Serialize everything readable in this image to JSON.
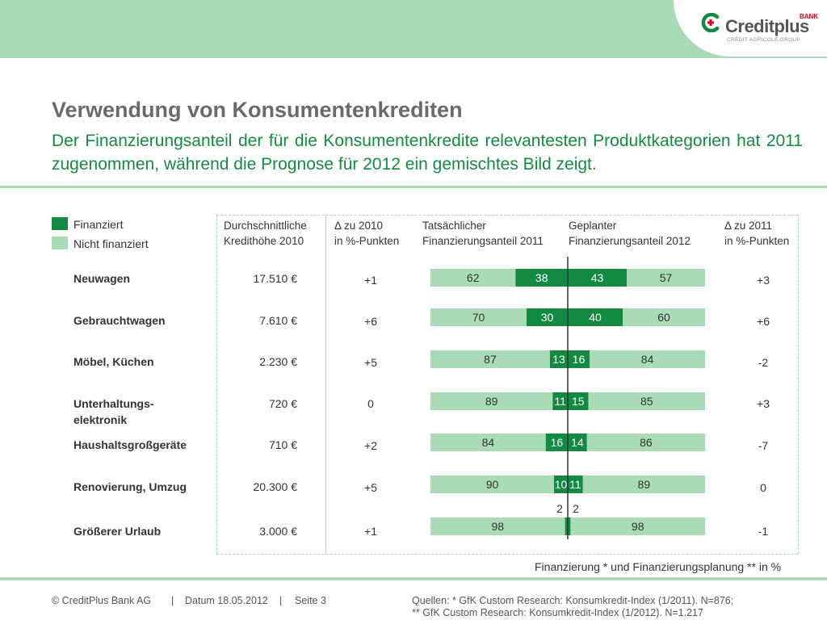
{
  "brand": {
    "name": "Creditplus",
    "bank": "BANK",
    "group": "CRÉDIT AGRICOLE GROUP"
  },
  "title": "Verwendung von Konsumentenkrediten",
  "subtitle": "Der Finanzierungsanteil der für die Konsumentenkredite relevantesten Produktkategorien hat 2011 zugenommen, während die Prognose für 2012 ein gemischtes Bild zeigt.",
  "colors": {
    "financed": "#138a42",
    "not_financed": "#a8dbb6",
    "accent": "#a8dbb6",
    "title_green": "#138a42"
  },
  "legend": {
    "financed": "Finanziert",
    "not_financed": "Nicht finanziert"
  },
  "columns": {
    "avg_amount": [
      "Durchschnittliche",
      "Kredithöhe 2010"
    ],
    "delta_2010": [
      "Δ zu 2010",
      "in %-Punkten"
    ],
    "actual_2011": [
      "Tatsächlicher",
      "Finanzierungsanteil 2011"
    ],
    "planned_2012": [
      "Geplanter",
      "Finanzierungsanteil 2012"
    ],
    "delta_2011": [
      "Δ zu 2011",
      "in %-Punkten"
    ]
  },
  "rows": [
    {
      "label": "Neuwagen",
      "amount": "17.510 €",
      "delta_2010": "+1",
      "delta_2011": "+3"
    },
    {
      "label": "Gebrauchtwagen",
      "amount": "7.610 €",
      "delta_2010": "+6",
      "delta_2011": "+6"
    },
    {
      "label": "Möbel, Küchen",
      "amount": "2.230 €",
      "delta_2010": "+5",
      "delta_2011": "-2"
    },
    {
      "label": "Unterhaltungs-\nelektronik",
      "amount": "720 €",
      "delta_2010": "0",
      "delta_2011": "+3"
    },
    {
      "label": "Haushaltsgroßgeräte",
      "amount": "710 €",
      "delta_2010": "+2",
      "delta_2011": "-7"
    },
    {
      "label": "Renovierung, Umzug",
      "amount": "20.300 €",
      "delta_2010": "+5",
      "delta_2011": "0"
    },
    {
      "label": "Größerer Urlaub",
      "amount": "3.000 €",
      "delta_2010": "+1",
      "delta_2011": "-1"
    }
  ],
  "chart_data": {
    "type": "bar",
    "orientation": "horizontal-diverging",
    "categories": [
      "Neuwagen",
      "Gebrauchtwagen",
      "Möbel, Küchen",
      "Unterhaltungs-elektronik",
      "Haushaltsgroßgeräte",
      "Renovierung, Umzug",
      "Größerer Urlaub"
    ],
    "series": [
      {
        "name": "Nicht finanziert",
        "values": [
          62,
          70,
          87,
          89,
          84,
          90,
          98
        ]
      },
      {
        "name": "Finanziert",
        "values": [
          38,
          30,
          13,
          11,
          16,
          10,
          2
        ]
      },
      {
        "name": "Finanziert",
        "values": [
          43,
          40,
          16,
          15,
          14,
          11,
          2
        ]
      },
      {
        "name": "Nicht finanziert",
        "values": [
          57,
          60,
          84,
          85,
          86,
          89,
          98
        ]
      }
    ],
    "outside_labels": [
      null,
      null,
      null,
      null,
      null,
      null,
      [
        2,
        2
      ]
    ]
  },
  "footnote": "Finanzierung * und Finanzierungsplanung ** in %",
  "footer": {
    "company": "© CreditPlus Bank AG",
    "sep": "|",
    "date": "Datum 18.05.2012",
    "page": "Seite 3",
    "source1": "Quellen: * GfK Custom Research: Konsumkredit-Index (1/2011). N=876;",
    "source2": "** GfK Custom Research: Konsumkredit-Index (1/2012). N=1.217"
  }
}
